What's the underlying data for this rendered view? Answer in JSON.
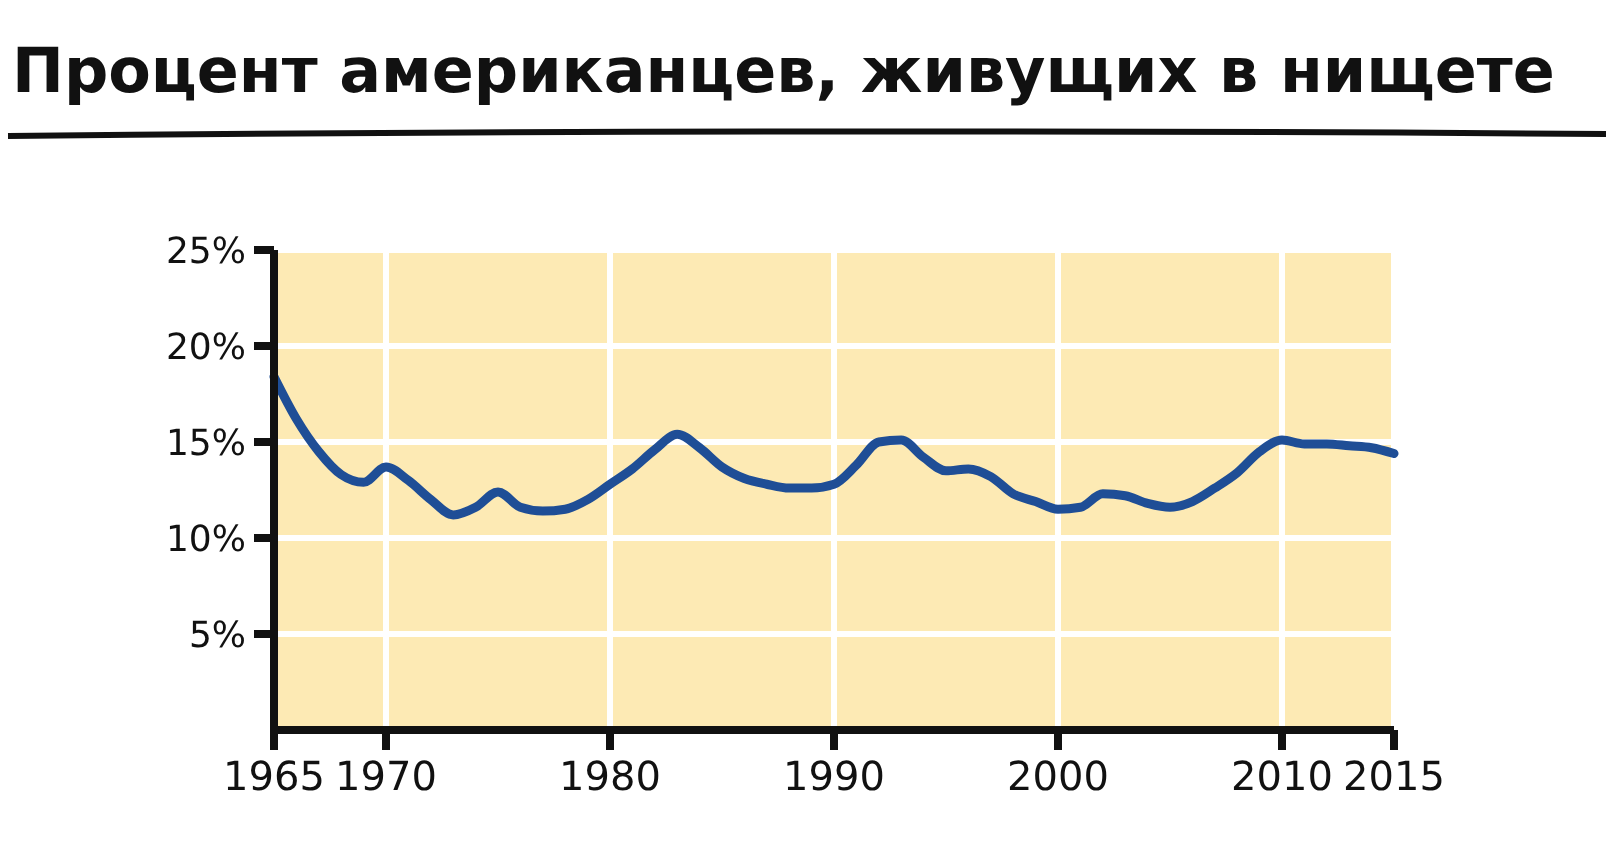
{
  "chart_data": {
    "type": "line",
    "title": "Процент американцев, живущих в нищете",
    "x": [
      1965,
      1966,
      1967,
      1968,
      1969,
      1970,
      1971,
      1972,
      1973,
      1974,
      1975,
      1976,
      1977,
      1978,
      1979,
      1980,
      1981,
      1982,
      1983,
      1984,
      1985,
      1986,
      1987,
      1988,
      1989,
      1990,
      1991,
      1992,
      1993,
      1994,
      1995,
      1996,
      1997,
      1998,
      1999,
      2000,
      2001,
      2002,
      2003,
      2004,
      2005,
      2006,
      2007,
      2008,
      2009,
      2010,
      2011,
      2012,
      2013,
      2014,
      2015
    ],
    "series": [
      {
        "color": "#1f4e96",
        "values": [
          18.4,
          16.2,
          14.5,
          13.3,
          12.9,
          13.7,
          13.0,
          12.0,
          11.2,
          11.6,
          12.4,
          11.6,
          11.4,
          11.5,
          12.0,
          12.8,
          13.6,
          14.6,
          15.4,
          14.7,
          13.7,
          13.1,
          12.8,
          12.6,
          12.6,
          12.8,
          13.8,
          15.0,
          15.1,
          14.2,
          13.5,
          13.6,
          13.2,
          12.3,
          11.9,
          11.5,
          11.6,
          12.3,
          12.2,
          11.8,
          11.6,
          11.9,
          12.6,
          13.4,
          14.5,
          15.1,
          14.9,
          14.9,
          14.8,
          14.7,
          14.4
        ]
      }
    ],
    "xlim": [
      1965,
      2015
    ],
    "xticks": [
      1965,
      1970,
      1980,
      1990,
      2000,
      2010,
      2015
    ],
    "ylim": [
      0,
      25
    ],
    "yticks": [
      {
        "value": 5,
        "label": "5%"
      },
      {
        "value": 10,
        "label": "10%"
      },
      {
        "value": 15,
        "label": "15%"
      },
      {
        "value": 20,
        "label": "20%"
      },
      {
        "value": 25,
        "label": "25%"
      }
    ],
    "grid": true
  }
}
